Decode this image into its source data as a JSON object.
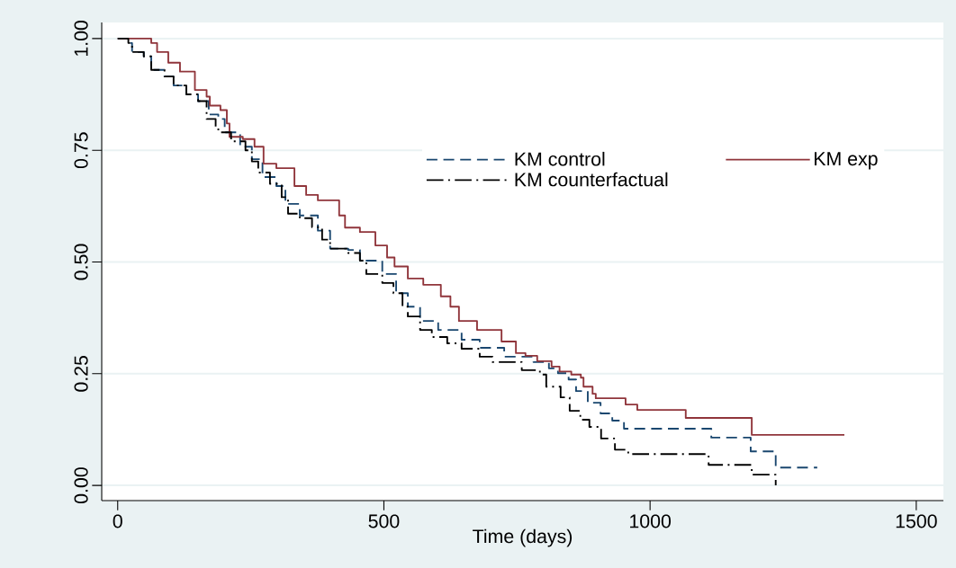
{
  "chart_data": {
    "type": "step",
    "xlabel": "Time (days)",
    "xlim": [
      -30,
      1551
    ],
    "ylim": [
      -0.034,
      1.036
    ],
    "xticks": [
      0,
      500,
      1000,
      1500
    ],
    "yticks": [
      {
        "value": 0,
        "label": "0.00"
      },
      {
        "value": 0.25,
        "label": "0.25"
      },
      {
        "value": 0.5,
        "label": "0.50"
      },
      {
        "value": 0.75,
        "label": "0.75"
      },
      {
        "value": 1,
        "label": "1.00"
      }
    ],
    "grid": "y",
    "legend": "top right",
    "marker": "none",
    "series": [
      {
        "name": "KM control",
        "color": "#1a476f",
        "line_style": "dashed",
        "x": [
          0,
          20,
          27,
          49,
          63,
          88,
          105,
          129,
          151,
          171,
          189,
          201,
          230,
          252,
          272,
          298,
          315,
          342,
          376,
          399,
          433,
          455,
          497,
          523,
          545,
          568,
          602,
          646,
          680,
          726,
          781,
          810,
          827,
          847,
          861,
          883,
          907,
          929,
          951,
          1115,
          1189,
          1236,
          1314
        ],
        "values": [
          1.0,
          0.99,
          0.97,
          0.96,
          0.93,
          0.915,
          0.895,
          0.875,
          0.86,
          0.83,
          0.82,
          0.79,
          0.758,
          0.73,
          0.69,
          0.67,
          0.63,
          0.604,
          0.57,
          0.53,
          0.527,
          0.503,
          0.473,
          0.43,
          0.4,
          0.368,
          0.348,
          0.326,
          0.308,
          0.288,
          0.276,
          0.262,
          0.251,
          0.237,
          0.211,
          0.185,
          0.161,
          0.145,
          0.127,
          0.107,
          0.076,
          0.04,
          0.04
        ]
      },
      {
        "name": "KM exp",
        "color": "#90353b",
        "line_style": "solid",
        "x": [
          0,
          63,
          74,
          95,
          117,
          145,
          167,
          173,
          193,
          205,
          210,
          235,
          257,
          274,
          298,
          332,
          354,
          376,
          416,
          427,
          455,
          484,
          506,
          520,
          545,
          574,
          607,
          625,
          641,
          675,
          721,
          748,
          766,
          788,
          815,
          830,
          852,
          870,
          875,
          892,
          898,
          954,
          976,
          1067,
          1191,
          1365
        ],
        "values": [
          1.0,
          0.99,
          0.97,
          0.946,
          0.926,
          0.885,
          0.87,
          0.85,
          0.84,
          0.81,
          0.78,
          0.775,
          0.758,
          0.72,
          0.71,
          0.67,
          0.65,
          0.638,
          0.604,
          0.577,
          0.567,
          0.537,
          0.51,
          0.49,
          0.463,
          0.449,
          0.423,
          0.4,
          0.368,
          0.348,
          0.322,
          0.296,
          0.29,
          0.278,
          0.266,
          0.255,
          0.248,
          0.241,
          0.221,
          0.205,
          0.195,
          0.181,
          0.169,
          0.151,
          0.113,
          0.113
        ]
      },
      {
        "name": "KM counterfactual",
        "color": "#000000",
        "line_style": "dashdot",
        "x": [
          0,
          20,
          27,
          49,
          63,
          88,
          105,
          129,
          151,
          167,
          184,
          189,
          213,
          240,
          252,
          264,
          286,
          308,
          320,
          342,
          365,
          384,
          399,
          433,
          455,
          467,
          497,
          518,
          535,
          545,
          568,
          590,
          619,
          646,
          680,
          704,
          759,
          793,
          805,
          832,
          849,
          869,
          886,
          908,
          934,
          959,
          1110,
          1191,
          1236
        ],
        "values": [
          1.0,
          0.99,
          0.97,
          0.96,
          0.93,
          0.915,
          0.895,
          0.875,
          0.86,
          0.82,
          0.8,
          0.79,
          0.77,
          0.75,
          0.725,
          0.7,
          0.675,
          0.645,
          0.608,
          0.598,
          0.578,
          0.55,
          0.53,
          0.52,
          0.503,
          0.473,
          0.453,
          0.43,
          0.4,
          0.378,
          0.348,
          0.332,
          0.318,
          0.306,
          0.288,
          0.276,
          0.258,
          0.248,
          0.221,
          0.197,
          0.167,
          0.147,
          0.131,
          0.105,
          0.08,
          0.07,
          0.046,
          0.024,
          0.0
        ]
      }
    ]
  }
}
